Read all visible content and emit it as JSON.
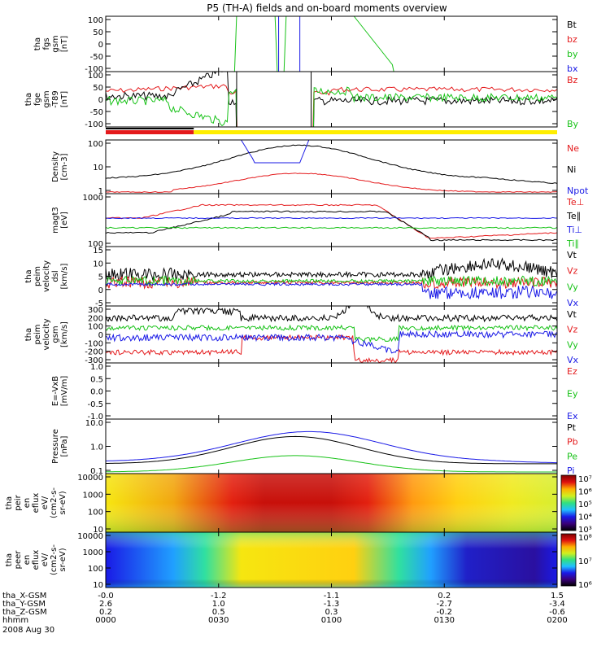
{
  "title": "P5 (TH-A) fields and on-board moments overview",
  "colors": {
    "black": "#000000",
    "red": "#e41a1c",
    "green": "#17c217",
    "blue": "#1a1ae6",
    "yellow": "#ffee00"
  },
  "chart_data": [
    {
      "type": "line",
      "name": "fgs",
      "ylabel_lines": [
        "tha",
        "fgs",
        "gsm",
        "[nT]"
      ],
      "yticks": [
        "100",
        "50",
        "0",
        "-50",
        "-100"
      ],
      "ylim": [
        -100,
        100
      ],
      "legend": [
        {
          "label": "Bt",
          "color": "black"
        },
        {
          "label": "bz",
          "color": "red"
        },
        {
          "label": "by",
          "color": "green"
        },
        {
          "label": "bx",
          "color": "blue"
        }
      ]
    },
    {
      "type": "line",
      "name": "fge",
      "ylabel_lines": [
        "tha",
        "fge",
        "gsm",
        "-T89",
        "[nT]"
      ],
      "yticks": [
        "100",
        "50",
        "0",
        "-50",
        "-100"
      ],
      "ylim": [
        -100,
        100
      ],
      "legend": [
        {
          "label": "Bz",
          "color": "red"
        },
        {
          "label": "By",
          "color": "green"
        }
      ]
    },
    {
      "type": "line",
      "name": "density",
      "ylabel_lines": [
        "Density",
        "[cm-3]"
      ],
      "yticks": [
        "100",
        "10",
        "1"
      ],
      "scale": "log",
      "legend": [
        {
          "label": "Ne",
          "color": "red"
        },
        {
          "label": "Ni",
          "color": "black"
        },
        {
          "label": "Npot",
          "color": "blue"
        }
      ]
    },
    {
      "type": "line",
      "name": "temperature",
      "ylabel_lines": [
        "magt3",
        "[eV]"
      ],
      "yticks": [
        "1000",
        "100"
      ],
      "scale": "log",
      "legend": [
        {
          "label": "Te⊥",
          "color": "red"
        },
        {
          "label": "Te∥",
          "color": "black"
        },
        {
          "label": "Ti⊥",
          "color": "blue"
        },
        {
          "label": "Ti∥",
          "color": "green"
        }
      ]
    },
    {
      "type": "line",
      "name": "peim-velocity-dsl",
      "ylabel_lines": [
        "tha",
        "peim",
        "velocity",
        "dsl",
        "[km/s]"
      ],
      "yticks": [
        "15",
        "10",
        "5",
        "0",
        "-5"
      ],
      "ylim": [
        -5,
        15
      ],
      "legend": [
        {
          "label": "Vt",
          "color": "black"
        },
        {
          "label": "Vz",
          "color": "red"
        },
        {
          "label": "Vy",
          "color": "green"
        },
        {
          "label": "Vx",
          "color": "blue"
        }
      ]
    },
    {
      "type": "line",
      "name": "peim-velocity-gsm",
      "ylabel_lines": [
        "tha",
        "peim",
        "velocity",
        "gsm",
        "[km/s]"
      ],
      "yticks": [
        "300",
        "200",
        "100",
        "0",
        "-100",
        "-200",
        "-300"
      ],
      "ylim": [
        -300,
        300
      ],
      "legend": [
        {
          "label": "Vt",
          "color": "black"
        },
        {
          "label": "Vz",
          "color": "red"
        },
        {
          "label": "Vy",
          "color": "green"
        },
        {
          "label": "Vx",
          "color": "blue"
        }
      ]
    },
    {
      "type": "line",
      "name": "efield",
      "ylabel_lines": [
        "E=-VxB",
        "[mV/m]"
      ],
      "yticks": [
        "1.0",
        "0.5",
        "0.0",
        "-0.5",
        "-1.0"
      ],
      "ylim": [
        -1,
        1
      ],
      "legend": [
        {
          "label": "Ez",
          "color": "red"
        },
        {
          "label": "Ey",
          "color": "green"
        },
        {
          "label": "Ex",
          "color": "blue"
        }
      ]
    },
    {
      "type": "line",
      "name": "pressure",
      "ylabel_lines": [
        "Pressure",
        "[nPa]"
      ],
      "yticks": [
        "10.0",
        "1.0",
        "0.1"
      ],
      "scale": "log",
      "legend": [
        {
          "label": "Pt",
          "color": "black"
        },
        {
          "label": "Pb",
          "color": "red"
        },
        {
          "label": "Pe",
          "color": "green"
        },
        {
          "label": "Pi",
          "color": "blue"
        }
      ]
    },
    {
      "type": "heatmap",
      "name": "ion-spectrogram",
      "ylabel_lines": [
        "tha",
        "peir",
        "en",
        "eflux",
        "eV/",
        "(cm2-s-",
        "sr-eV)"
      ],
      "yticks": [
        "10000",
        "1000",
        "100",
        "10"
      ],
      "colorbar": [
        "10⁷",
        "10⁶",
        "10⁵",
        "10⁴",
        "10³"
      ]
    },
    {
      "type": "heatmap",
      "name": "electron-spectrogram",
      "ylabel_lines": [
        "tha",
        "peer",
        "en",
        "eflux",
        "eV/",
        "(cm2-s-",
        "sr-eV)"
      ],
      "yticks": [
        "10000",
        "1000",
        "100",
        "10"
      ],
      "colorbar": [
        "10⁸",
        "10⁷",
        "10⁶"
      ]
    }
  ],
  "xaxis": {
    "rows": [
      {
        "label": "tha_X-GSM",
        "values": [
          "-0.0",
          "-1.2",
          "-1.1",
          "0.2",
          "1.5"
        ]
      },
      {
        "label": "tha_Y-GSM",
        "values": [
          "2.6",
          "1.0",
          "-1.3",
          "-2.7",
          "-3.4"
        ]
      },
      {
        "label": "tha_Z-GSM",
        "values": [
          "0.2",
          "0.5",
          "0.3",
          "-0.2",
          "-0.6"
        ]
      },
      {
        "label": "hhmm",
        "values": [
          "0000",
          "0030",
          "0100",
          "0130",
          "0200"
        ]
      }
    ],
    "date": "2008 Aug 30"
  }
}
